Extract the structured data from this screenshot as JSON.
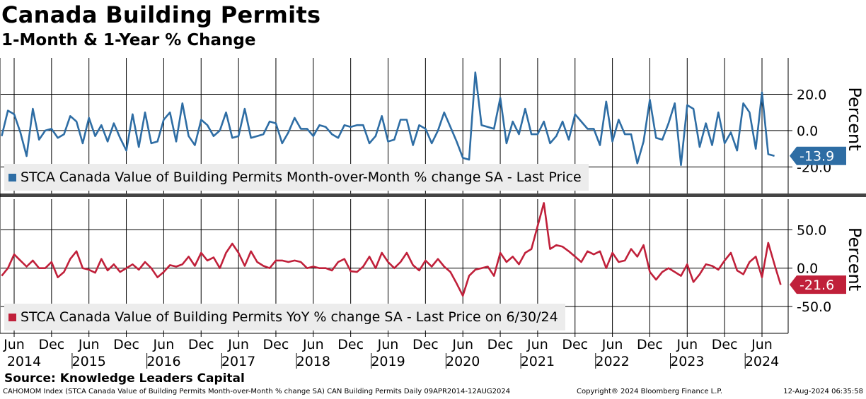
{
  "header": {
    "title": "Canada Building Permits",
    "subtitle": "1-Month & 1-Year % Change"
  },
  "source": "Source: Knowledge Leaders Capital",
  "footer": {
    "left": "CAHOMOM Index (STCA Canada Value of Building Permits Month-over-Month % change SA) CAN Building Permits  Daily 09APR2014-12AUG2024",
    "middle": "Copyright® 2024 Bloomberg Finance L.P.",
    "right": "12-Aug-2024 06:35:58"
  },
  "colors": {
    "mom": "#2e6da4",
    "yoy": "#c0203a",
    "grid": "#000000",
    "legend_bg": "#ececec"
  },
  "chart_data": [
    {
      "type": "line",
      "name": "mom-panel",
      "axis_label": "Percent",
      "legend": "STCA Canada Value of Building Permits Month-over-Month % change SA - Last Price",
      "last_value_label": "-13.9",
      "ylim": [
        -35,
        40
      ],
      "yticks": [
        20,
        0,
        -20
      ],
      "ytick_labels": [
        "20.0",
        "0.0",
        "-20.0"
      ],
      "start": "2014-04",
      "values": [
        -3,
        11,
        9,
        -1,
        -14,
        12,
        -5,
        0,
        1,
        -4,
        -2,
        8,
        5,
        -7,
        7,
        -3,
        3,
        -6,
        4,
        -4,
        -11,
        9,
        -9,
        10,
        -7,
        -6,
        6,
        10,
        -6,
        15,
        -3,
        -8,
        6,
        3,
        -3,
        0,
        10,
        -4,
        -3,
        12,
        -4,
        -3,
        -2,
        5,
        4,
        -7,
        -1,
        7,
        1,
        1,
        -3,
        3,
        2,
        -2,
        -4,
        3,
        2,
        3,
        3,
        -7,
        -3,
        8,
        -6,
        -5,
        6,
        6,
        -8,
        3,
        1,
        -7,
        0,
        10,
        2,
        -6,
        -15,
        -16,
        32,
        3,
        2,
        1,
        18,
        -7,
        5,
        -2,
        12,
        -2,
        -2,
        5,
        -7,
        -3,
        5,
        -5,
        9,
        5,
        1,
        1,
        -8,
        16,
        -6,
        6,
        -2,
        -2,
        -18,
        -6,
        17,
        -4,
        -5,
        4,
        15,
        -19,
        14,
        12,
        -9,
        4,
        -8,
        10,
        -7,
        -1,
        -11,
        15,
        10,
        -10,
        21,
        -13,
        -13.9
      ],
      "xtick_labels": [
        "Jun",
        "Dec",
        "Jun",
        "Dec",
        "Jun",
        "Dec",
        "Jun",
        "Dec",
        "Jun",
        "Dec",
        "Jun",
        "Dec",
        "Jun",
        "Dec",
        "Jun",
        "Dec",
        "Jun",
        "Dec",
        "Jun",
        "Dec",
        "Jun"
      ],
      "year_labels": [
        "2014",
        "2015",
        "2016",
        "2017",
        "2018",
        "2019",
        "2020",
        "2021",
        "2022",
        "2023",
        "2024"
      ]
    },
    {
      "type": "line",
      "name": "yoy-panel",
      "axis_label": "Percent",
      "legend": "STCA Canada Value of Building Permits YoY % change SA - Last Price on 6/30/24",
      "last_value_label": "-21.6",
      "ylim": [
        -85,
        90
      ],
      "yticks": [
        50,
        0,
        -50
      ],
      "ytick_labels": [
        "50.0",
        "0.0",
        "-50.0"
      ],
      "start": "2014-04",
      "values": [
        -10,
        0,
        18,
        10,
        2,
        10,
        0,
        0,
        8,
        -12,
        -5,
        12,
        22,
        0,
        -2,
        -6,
        12,
        -3,
        5,
        -5,
        0,
        5,
        -2,
        8,
        0,
        -12,
        -5,
        4,
        2,
        5,
        15,
        3,
        20,
        10,
        14,
        0,
        20,
        32,
        20,
        3,
        22,
        8,
        3,
        0,
        10,
        10,
        8,
        10,
        8,
        0,
        2,
        0,
        0,
        -3,
        8,
        12,
        -4,
        -5,
        2,
        15,
        0,
        20,
        8,
        0,
        8,
        20,
        4,
        -3,
        10,
        2,
        12,
        2,
        -5,
        -20,
        -36,
        -10,
        -2,
        0,
        2,
        -10,
        20,
        8,
        15,
        5,
        20,
        25,
        55,
        85,
        25,
        30,
        28,
        22,
        15,
        8,
        22,
        18,
        22,
        0,
        20,
        8,
        10,
        25,
        15,
        30,
        -5,
        -15,
        -5,
        0,
        -5,
        -10,
        5,
        -18,
        -8,
        5,
        3,
        -2,
        10,
        20,
        -3,
        -8,
        8,
        15,
        -12,
        33,
        5,
        -21.6
      ],
      "xtick_labels": [
        "Jun",
        "Dec",
        "Jun",
        "Dec",
        "Jun",
        "Dec",
        "Jun",
        "Dec",
        "Jun",
        "Dec",
        "Jun",
        "Dec",
        "Jun",
        "Dec",
        "Jun",
        "Dec",
        "Jun",
        "Dec",
        "Jun",
        "Dec",
        "Jun"
      ],
      "year_labels": [
        "2014",
        "2015",
        "2016",
        "2017",
        "2018",
        "2019",
        "2020",
        "2021",
        "2022",
        "2023",
        "2024"
      ]
    }
  ]
}
